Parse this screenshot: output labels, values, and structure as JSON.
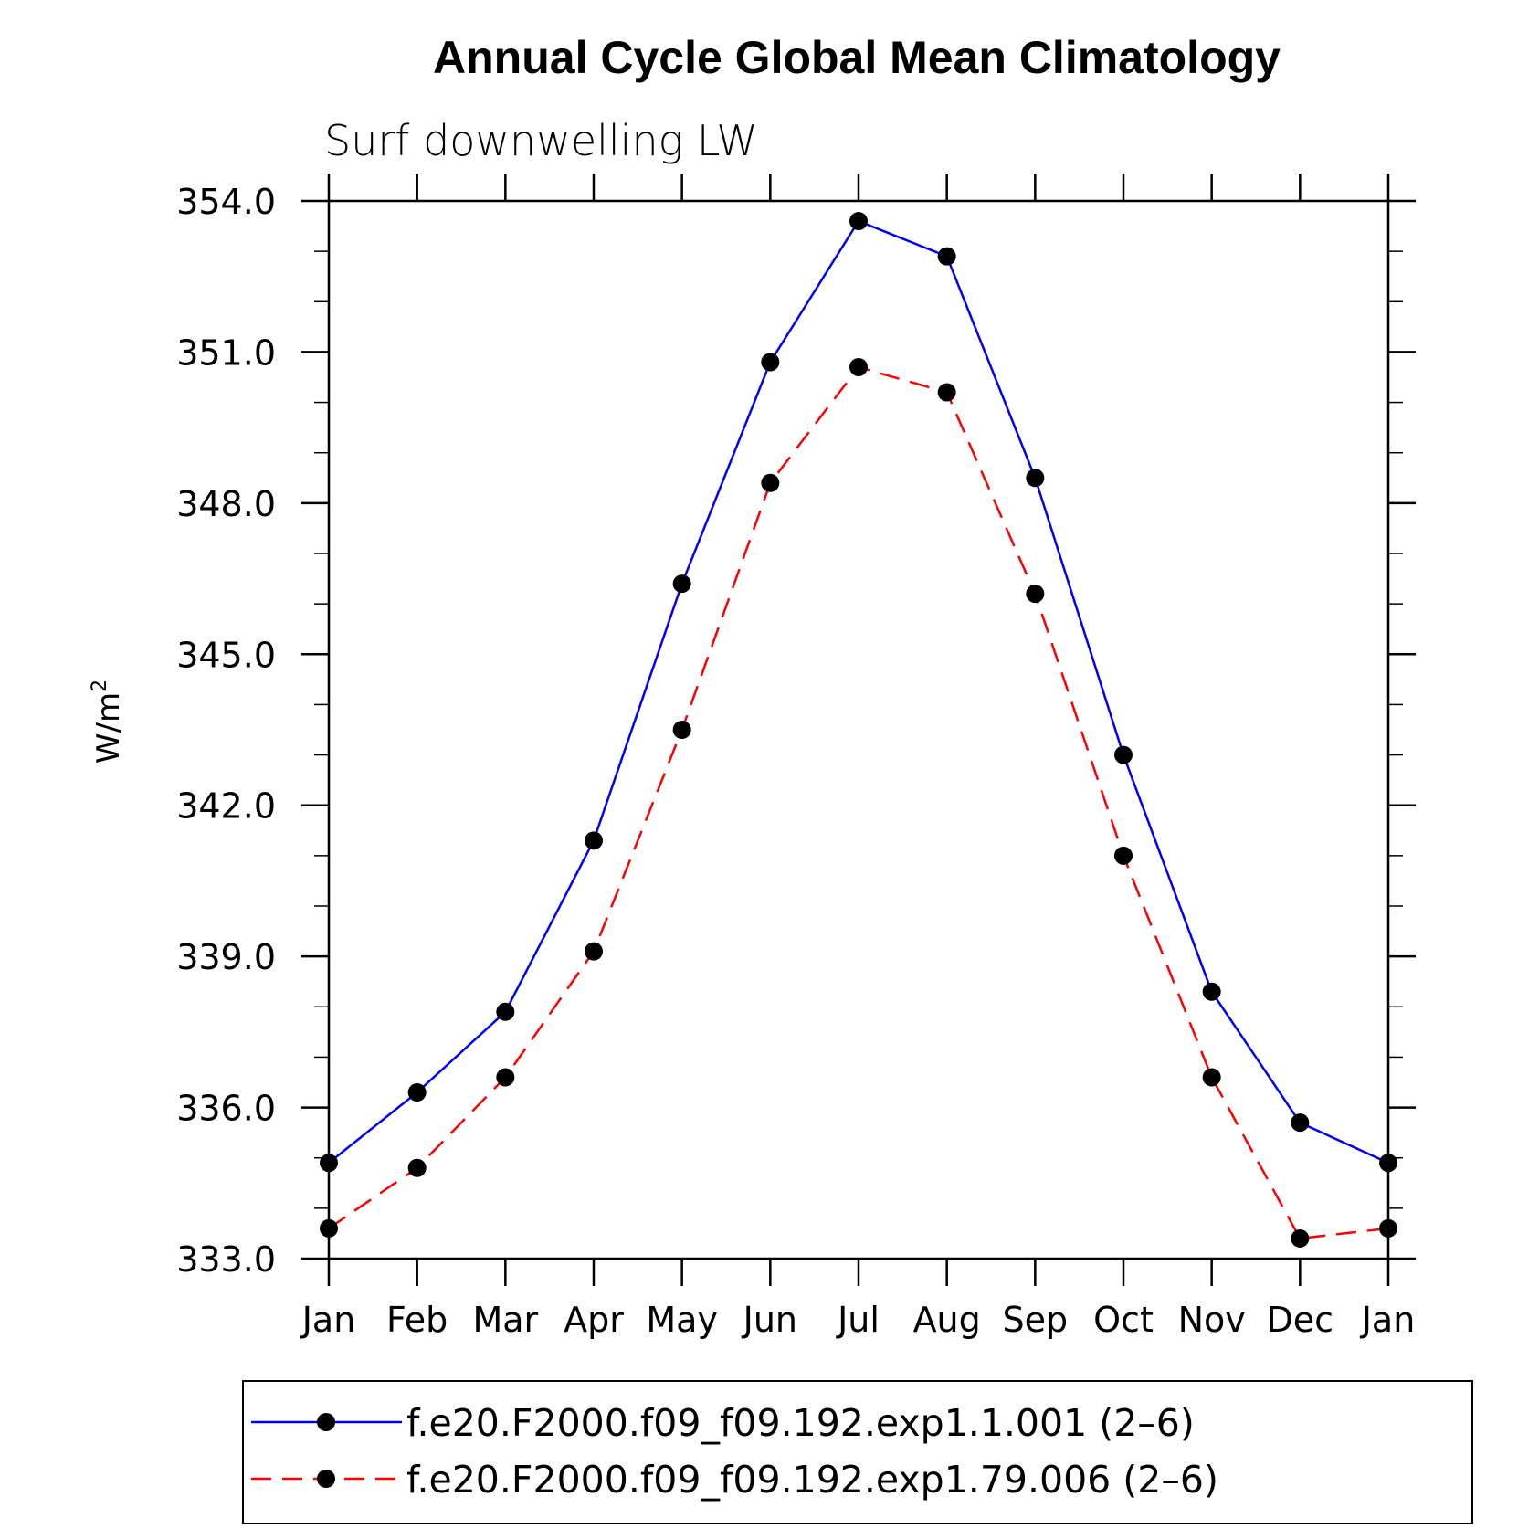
{
  "chart_data": {
    "type": "line",
    "title": "Annual Cycle Global Mean Climatology",
    "subtitle": "Surf downwelling LW",
    "ylabel": "W/m",
    "ylabel_superscript": "2",
    "xlabel": "",
    "categories": [
      "Jan",
      "Feb",
      "Mar",
      "Apr",
      "May",
      "Jun",
      "Jul",
      "Aug",
      "Sep",
      "Oct",
      "Nov",
      "Dec",
      "Jan"
    ],
    "ylim": [
      333.0,
      354.0
    ],
    "yticks": [
      "333.0",
      "336.0",
      "339.0",
      "342.0",
      "345.0",
      "348.0",
      "351.0",
      "354.0"
    ],
    "grid": false,
    "legend_position": "bottom",
    "series": [
      {
        "name": "f.e20.F2000.f09_f09.192.exp1.1.001 (2–6)",
        "color": "#0000ff",
        "line_style": "solid",
        "marker": "filled-circle",
        "values": [
          334.9,
          336.3,
          337.9,
          341.3,
          346.4,
          350.8,
          353.6,
          352.9,
          348.5,
          343.0,
          338.3,
          335.7,
          334.9
        ]
      },
      {
        "name": "f.e20.F2000.f09_f09.192.exp1.79.006 (2–6)",
        "color": "#ff0000",
        "line_style": "dashed",
        "marker": "filled-circle",
        "values": [
          333.6,
          334.8,
          336.6,
          339.1,
          343.5,
          348.4,
          350.7,
          350.2,
          346.2,
          341.0,
          336.6,
          333.4,
          333.6
        ]
      }
    ]
  }
}
